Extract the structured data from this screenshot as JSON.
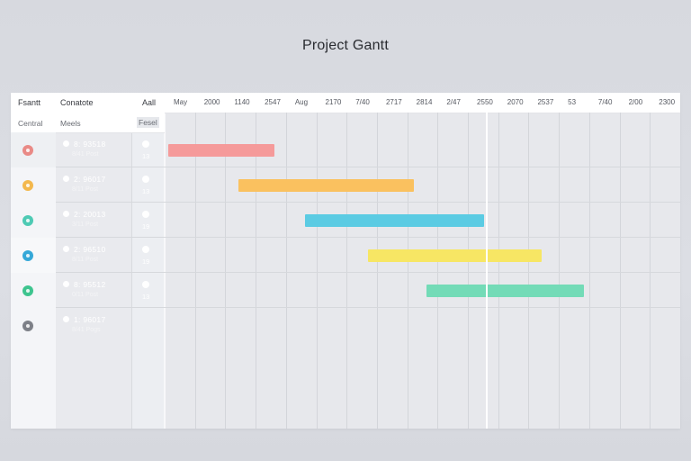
{
  "title": "Project Gantt",
  "header": {
    "col1": "Fsantt",
    "col2": "Conatote",
    "col3": "Aall",
    "months": [
      "May",
      "2000",
      "1140",
      "2547",
      "Aug",
      "2170",
      "7/40",
      "2717",
      "2814",
      "2/47",
      "2550",
      "2070",
      "2537",
      "53",
      "7/40",
      "2/00",
      "2300"
    ]
  },
  "subheader": {
    "col1": "Central",
    "col2": "Meels",
    "col3": "Fesel"
  },
  "tasks": [
    {
      "id": "8: 93518",
      "sub": "8/41 Post",
      "count": "13",
      "icon": "circle-icon",
      "icon_color": "#e98a86",
      "bar_color": "#f59a9a",
      "start": 0,
      "end": 3.5
    },
    {
      "id": "2: 96017",
      "sub": "8/11 Post",
      "count": "13",
      "icon": "circle-icon",
      "icon_color": "#f3b84e",
      "bar_color": "#fac15f",
      "start": 2.3,
      "end": 8.1
    },
    {
      "id": "2: 20013",
      "sub": "3/11 Post",
      "count": "19",
      "icon": "circle-icon",
      "icon_color": "#4ecab4",
      "bar_color": "#5bcbe3",
      "start": 4.5,
      "end": 10.4
    },
    {
      "id": "2: 96510",
      "sub": "8/11 Post",
      "count": "19",
      "icon": "circle-icon",
      "icon_color": "#35a8d8",
      "bar_color": "#f7e664",
      "start": 6.6,
      "end": 12.3
    },
    {
      "id": "8: 95512",
      "sub": "0/11 Post",
      "count": "13",
      "icon": "circle-icon",
      "icon_color": "#3ec48f",
      "bar_color": "#73dbb7",
      "start": 8.5,
      "end": 13.7
    },
    {
      "id": "1: 96017",
      "sub": "8/41 Pogs",
      "count": "",
      "icon": "wrench-icon",
      "icon_color": "#7d8088",
      "bar_color": "",
      "start": null,
      "end": null
    }
  ],
  "today_marker": 10.6
}
